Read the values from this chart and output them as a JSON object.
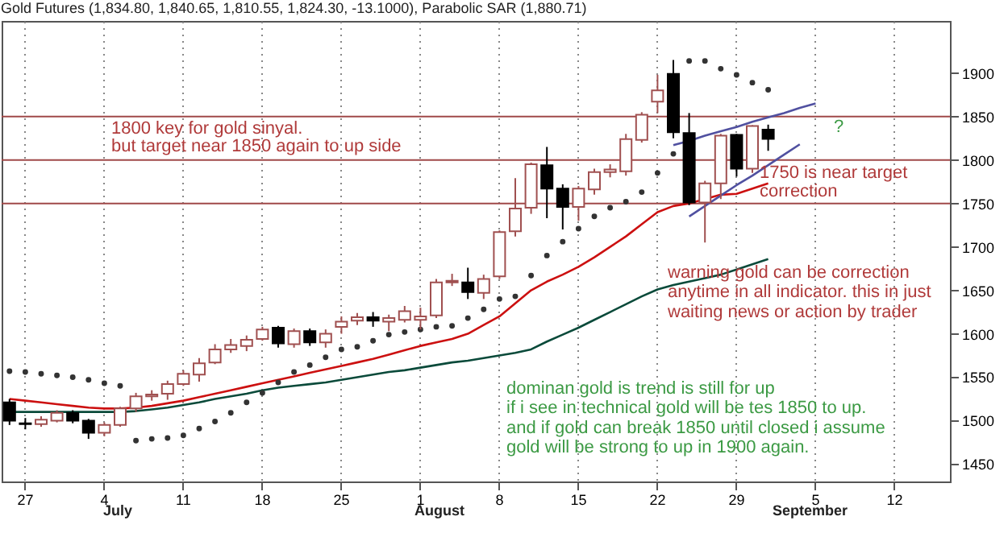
{
  "chart_data": {
    "type": "candlestick",
    "title": "Gold Futures (1,834.80, 1,840.65, 1,810.55, 1,824.30, -13.1000), Parabolic SAR (1,880.71)",
    "categories": [
      null,
      "27",
      null,
      null,
      null,
      null,
      "4",
      null,
      null,
      null,
      null,
      "11",
      null,
      null,
      null,
      null,
      "18",
      null,
      null,
      null,
      null,
      "25",
      null,
      null,
      null,
      null,
      "1",
      null,
      null,
      null,
      null,
      "8",
      null,
      null,
      null,
      null,
      "15",
      null,
      null,
      null,
      null,
      "22",
      null,
      null,
      null,
      null,
      "29",
      null,
      null,
      null,
      null,
      "5",
      null,
      null,
      null,
      null,
      "12",
      null,
      null,
      null
    ],
    "ohlc": [
      [
        1521,
        1525,
        1495,
        1500
      ],
      [
        1497,
        1503,
        1490,
        1496
      ],
      [
        1496,
        1505,
        1493,
        1501
      ],
      [
        1500,
        1512,
        1498,
        1509
      ],
      [
        1509,
        1512,
        1497,
        1500
      ],
      [
        1500,
        1502,
        1479,
        1486
      ],
      [
        1486,
        1498,
        1482,
        1495
      ],
      [
        1495,
        1516,
        1493,
        1514
      ],
      [
        1514,
        1532,
        1510,
        1528
      ],
      [
        1528,
        1535,
        1523,
        1530
      ],
      [
        1531,
        1546,
        1524,
        1542
      ],
      [
        1542,
        1558,
        1540,
        1554
      ],
      [
        1553,
        1572,
        1545,
        1566
      ],
      [
        1567,
        1588,
        1565,
        1582
      ],
      [
        1582,
        1594,
        1578,
        1587
      ],
      [
        1586,
        1598,
        1580,
        1593
      ],
      [
        1594,
        1608,
        1592,
        1605
      ],
      [
        1607,
        1609,
        1584,
        1589
      ],
      [
        1588,
        1606,
        1584,
        1603
      ],
      [
        1603,
        1606,
        1586,
        1590
      ],
      [
        1590,
        1605,
        1584,
        1600
      ],
      [
        1608,
        1620,
        1600,
        1614
      ],
      [
        1615,
        1624,
        1610,
        1619
      ],
      [
        1619,
        1625,
        1608,
        1615
      ],
      [
        1614,
        1622,
        1603,
        1618
      ],
      [
        1616,
        1632,
        1613,
        1626
      ],
      [
        1616,
        1630,
        1605,
        1620
      ],
      [
        1621,
        1663,
        1618,
        1659
      ],
      [
        1659,
        1669,
        1655,
        1661
      ],
      [
        1659,
        1676,
        1640,
        1648
      ],
      [
        1647,
        1668,
        1640,
        1663
      ],
      [
        1666,
        1719,
        1663,
        1717
      ],
      [
        1718,
        1779,
        1712,
        1744
      ],
      [
        1745,
        1797,
        1738,
        1795
      ],
      [
        1794,
        1815,
        1733,
        1767
      ],
      [
        1767,
        1772,
        1720,
        1746
      ],
      [
        1746,
        1770,
        1730,
        1767
      ],
      [
        1766,
        1790,
        1760,
        1786
      ],
      [
        1786,
        1795,
        1780,
        1789
      ],
      [
        1787,
        1830,
        1782,
        1824
      ],
      [
        1823,
        1855,
        1820,
        1852
      ],
      [
        1867,
        1898,
        1854,
        1880
      ],
      [
        1899,
        1915,
        1825,
        1832
      ],
      [
        1831,
        1854,
        1748,
        1751
      ],
      [
        1751,
        1776,
        1705,
        1773
      ],
      [
        1773,
        1830,
        1755,
        1828
      ],
      [
        1829,
        1830,
        1781,
        1790
      ],
      [
        1790,
        1840,
        1785,
        1839
      ],
      [
        1834.8,
        1840.65,
        1810.55,
        1824.3
      ],
      null,
      null,
      null,
      null,
      null,
      null,
      null,
      null,
      null,
      null,
      null
    ],
    "series": [
      {
        "type": "line",
        "color": "#0a4a3a",
        "values": [
          1510,
          1510,
          1510,
          1510,
          1510,
          1510,
          1510,
          1510,
          1511,
          1513,
          1515,
          1518,
          1521,
          1525,
          1528,
          1531,
          1535,
          1538,
          1540,
          1542,
          1544,
          1547,
          1550,
          1553,
          1556,
          1558,
          1561,
          1564,
          1567,
          1569,
          1572,
          1575,
          1578,
          1582,
          1591,
          1599,
          1607,
          1616,
          1625,
          1634,
          1643,
          1651,
          1656,
          1660,
          1664,
          1668,
          1674,
          1680,
          1686,
          null,
          null,
          null,
          null,
          null,
          null,
          null,
          null,
          null,
          null,
          null
        ]
      },
      {
        "type": "line",
        "color": "#cc1010",
        "values": [
          1525,
          1523,
          1521,
          1519,
          1517,
          1515,
          1514,
          1514,
          1515,
          1517,
          1520,
          1523,
          1527,
          1531,
          1535,
          1539,
          1543,
          1547,
          1551,
          1555,
          1559,
          1563,
          1567,
          1571,
          1576,
          1581,
          1586,
          1590,
          1594,
          1600,
          1610,
          1620,
          1635,
          1650,
          1660,
          1668,
          1677,
          1688,
          1700,
          1712,
          1726,
          1740,
          1747,
          1750,
          1755,
          1760,
          1761,
          1767,
          1773,
          null,
          null,
          null,
          null,
          null,
          null,
          null,
          null,
          null,
          null,
          null
        ]
      },
      {
        "type": "scatter",
        "color": "#333333",
        "values": [
          1557,
          1556,
          1554,
          1552,
          1550,
          1547,
          1543,
          1540,
          1477,
          1479,
          1480,
          1483,
          1491,
          1499,
          1509,
          1521,
          1532,
          1544,
          1556,
          1564,
          1573,
          1582,
          1585,
          1592,
          1599,
          1602,
          1605,
          1608,
          1609,
          1618,
          1628,
          1640,
          1643,
          1667,
          1690,
          1706,
          1721,
          1735,
          1745,
          1752,
          1763,
          1785,
          1807,
          1914,
          1914,
          1905,
          1898,
          1889,
          1880.71,
          null,
          null,
          null,
          null,
          null,
          null,
          null,
          null,
          null,
          null,
          null
        ]
      },
      {
        "type": "line",
        "color": "#5050a0",
        "values": [
          null,
          null,
          null,
          null,
          null,
          null,
          null,
          null,
          null,
          null,
          null,
          null,
          null,
          null,
          null,
          null,
          null,
          null,
          null,
          null,
          null,
          null,
          null,
          null,
          null,
          null,
          null,
          null,
          null,
          null,
          null,
          null,
          null,
          null,
          null,
          null,
          null,
          null,
          null,
          null,
          null,
          null,
          1817,
          1822,
          1828,
          1833,
          1838,
          1844,
          1849,
          1854,
          1860,
          1865,
          null,
          null,
          null,
          null,
          null,
          null,
          null,
          null
        ]
      },
      {
        "type": "line",
        "color": "#5050a0",
        "values": [
          null,
          null,
          null,
          null,
          null,
          null,
          null,
          null,
          null,
          null,
          null,
          null,
          null,
          null,
          null,
          null,
          null,
          null,
          null,
          null,
          null,
          null,
          null,
          null,
          null,
          null,
          null,
          null,
          null,
          null,
          null,
          null,
          null,
          null,
          null,
          null,
          null,
          null,
          null,
          null,
          null,
          null,
          null,
          1735,
          1747,
          1759,
          1771,
          1782,
          1794,
          1806,
          1818,
          null,
          null,
          null,
          null,
          null,
          null,
          null,
          null,
          null
        ]
      }
    ],
    "ylim": [
      1430,
      1960
    ],
    "yticks": [
      1450,
      1500,
      1550,
      1600,
      1650,
      1700,
      1750,
      1800,
      1850,
      1900
    ],
    "grid": "x",
    "ref_lines": [
      {
        "axis": "y",
        "value": 1850,
        "color": "#a04848"
      },
      {
        "axis": "y",
        "value": 1800,
        "color": "#a04848"
      },
      {
        "axis": "y",
        "value": 1750,
        "color": "#a04848"
      }
    ],
    "annotations": [
      "1800 key for gold sinyal.",
      "but target near 1850 again to up side",
      "1750 is near target",
      "correction",
      "warning gold  can be correction",
      "anytime in all indicator. this in just",
      "waiting news or action by trader",
      "dominan gold is trend is still for up",
      "if i see in technical gold will be tes 1850 to up.",
      "and if gold can break 1850 until closed i assume",
      "gold will be strong to up in 1900 again.",
      "?",
      "July",
      "August",
      "September"
    ]
  }
}
